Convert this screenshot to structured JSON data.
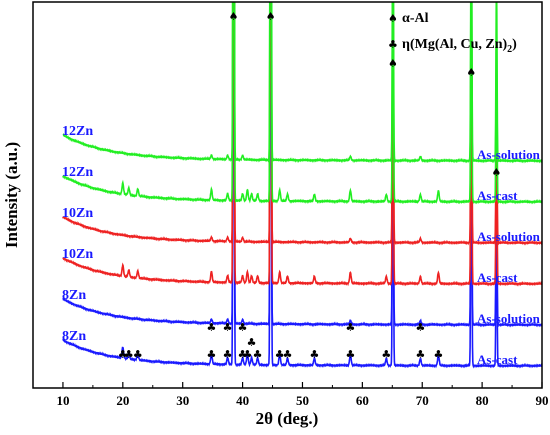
{
  "chart_data": {
    "type": "line",
    "title": "",
    "xlabel": "2θ (deg.)",
    "ylabel": "Intensity (a.u.)",
    "xlim": [
      5,
      90
    ],
    "xticks": [
      10,
      20,
      30,
      40,
      50,
      60,
      70,
      80,
      90
    ],
    "grid": false,
    "legend": {
      "position": "top-right",
      "entries": [
        {
          "symbol": "spade",
          "label": "α-Al"
        },
        {
          "symbol": "club",
          "label": "η(Mg(Al, Cu, Zn)",
          "subscript": "2",
          "suffix": ")"
        }
      ]
    },
    "peaks": {
      "alpha_Al": [
        38.5,
        44.7,
        65.1,
        78.2,
        82.4
      ],
      "eta_as_solution_12Zn": [
        34.8,
        37.5,
        40.0,
        58.0,
        69.7
      ],
      "eta_as_cast": [
        20.0,
        21.0,
        22.5,
        34.8,
        37.5,
        40.0,
        40.8,
        41.5,
        42.5,
        46.2,
        47.5,
        52.0,
        58.0,
        64.0,
        69.7,
        72.7
      ]
    },
    "series": [
      {
        "sample": "8Zn",
        "condition": "As-cast",
        "color": "#1a1aff",
        "baseline": 0.0,
        "secondary_phase": "strong"
      },
      {
        "sample": "8Zn",
        "condition": "As-solution",
        "color": "#1a1aff",
        "baseline": 1.0,
        "secondary_phase": "weak"
      },
      {
        "sample": "10Zn",
        "condition": "As-cast",
        "color": "#ee2222",
        "baseline": 2.0,
        "secondary_phase": "strong"
      },
      {
        "sample": "10Zn",
        "condition": "As-solution",
        "color": "#ee2222",
        "baseline": 3.0,
        "secondary_phase": "weak"
      },
      {
        "sample": "12Zn",
        "condition": "As-cast",
        "color": "#22ee22",
        "baseline": 4.0,
        "secondary_phase": "strong"
      },
      {
        "sample": "12Zn",
        "condition": "As-solution",
        "color": "#22ee22",
        "baseline": 5.0,
        "secondary_phase": "weak"
      }
    ],
    "left_labels": [
      {
        "text": "8Zn",
        "series_index": 0
      },
      {
        "text": "8Zn",
        "series_index": 1
      },
      {
        "text": "10Zn",
        "series_index": 2
      },
      {
        "text": "10Zn",
        "series_index": 3
      },
      {
        "text": "12Zn",
        "series_index": 4
      },
      {
        "text": "12Zn",
        "series_index": 5
      }
    ]
  }
}
